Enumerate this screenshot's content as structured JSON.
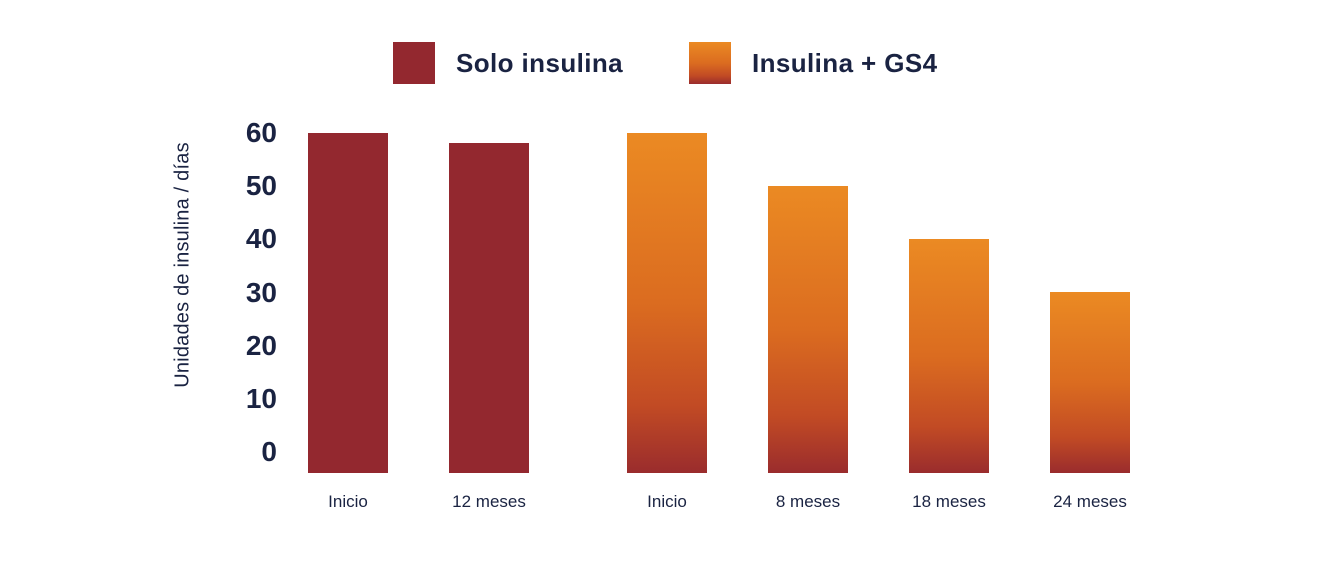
{
  "page": {
    "background": "#FFFFFF",
    "text_color": "#1A2342"
  },
  "chart_data": {
    "type": "bar",
    "title": "",
    "xlabel": "",
    "ylabel": "Unidades de insulina / días",
    "ylim": [
      0,
      60
    ],
    "yticks": [
      60,
      50,
      40,
      30,
      20,
      10,
      0
    ],
    "grid": false,
    "axis_lines": false,
    "legend_position": "top-center",
    "categories": [
      "Inicio",
      "12 meses",
      "Inicio",
      "8 meses",
      "18 meses",
      "24 meses"
    ],
    "series": [
      {
        "name": "Solo insulina",
        "style": "solid",
        "color": "#93282F",
        "categories": [
          "Inicio",
          "12 meses"
        ],
        "values": [
          60,
          58
        ]
      },
      {
        "name": "Insulina + GS4",
        "style": "gradient",
        "gradient_stops": [
          [
            "0%",
            "#EB8A23"
          ],
          [
            "50%",
            "#DB6C20"
          ],
          [
            "80%",
            "#C24B24"
          ],
          [
            "100%",
            "#9A2C2D"
          ]
        ],
        "categories": [
          "Inicio",
          "8 meses",
          "18 meses",
          "24 meses"
        ],
        "values": [
          60,
          50,
          40,
          30
        ]
      }
    ]
  }
}
